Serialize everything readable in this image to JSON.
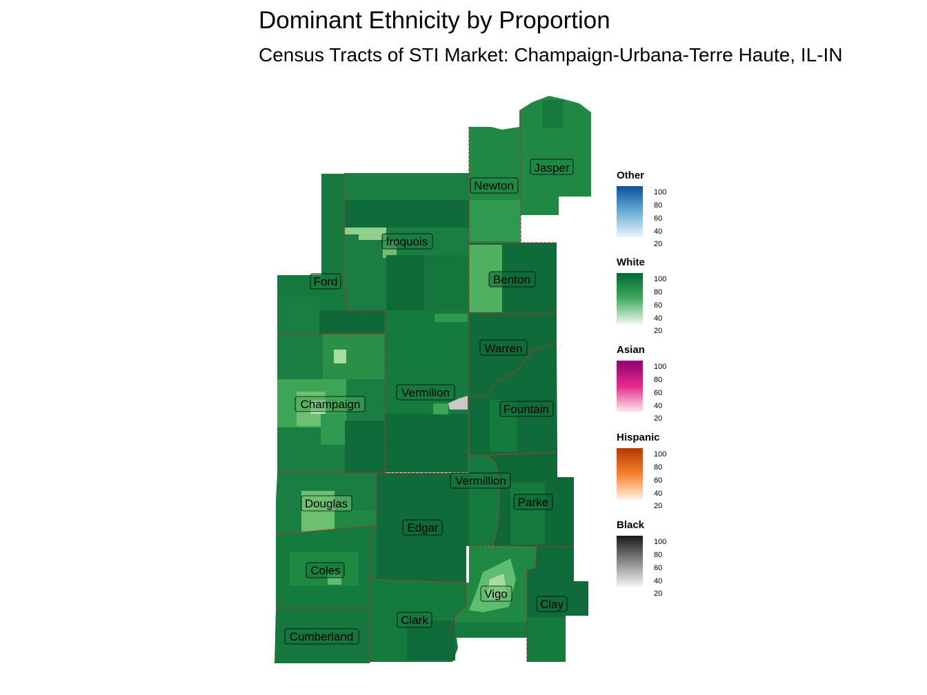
{
  "title": "Dominant Ethnicity by Proportion",
  "subtitle": "Census Tracts of STI Market: Champaign-Urbana-Terre Haute, IL-IN",
  "counties": [
    {
      "id": "jasper",
      "name": "Jasper"
    },
    {
      "id": "newton",
      "name": "Newton"
    },
    {
      "id": "iroquois",
      "name": "Iroquois"
    },
    {
      "id": "ford",
      "name": "Ford"
    },
    {
      "id": "benton",
      "name": "Benton"
    },
    {
      "id": "warren",
      "name": "Warren"
    },
    {
      "id": "vermilion",
      "name": "Vermilion"
    },
    {
      "id": "champaign",
      "name": "Champaign"
    },
    {
      "id": "fountain",
      "name": "Fountain"
    },
    {
      "id": "vermillion",
      "name": "Vermillion"
    },
    {
      "id": "parke",
      "name": "Parke"
    },
    {
      "id": "douglas",
      "name": "Douglas"
    },
    {
      "id": "edgar",
      "name": "Edgar"
    },
    {
      "id": "coles",
      "name": "Coles"
    },
    {
      "id": "vigo",
      "name": "Vigo"
    },
    {
      "id": "clay",
      "name": "Clay"
    },
    {
      "id": "clark",
      "name": "Clark"
    },
    {
      "id": "cumberland",
      "name": "Cumberland"
    }
  ],
  "legends": [
    {
      "title": "Other",
      "ticks": [
        "100",
        "80",
        "60",
        "40",
        "20"
      ],
      "color_high": "#08519c",
      "color_low": "#eef4fb"
    },
    {
      "title": "White",
      "ticks": [
        "100",
        "80",
        "60",
        "40",
        "20"
      ],
      "color_high": "#006837",
      "color_low": "#eef8ee"
    },
    {
      "title": "Asian",
      "ticks": [
        "100",
        "80",
        "60",
        "40",
        "20"
      ],
      "color_high": "#8e0170",
      "color_low": "#fde7ea"
    },
    {
      "title": "Hispanic",
      "ticks": [
        "100",
        "80",
        "60",
        "40",
        "20"
      ],
      "color_high": "#b33a00",
      "color_low": "#fff0e0"
    },
    {
      "title": "Black",
      "ticks": [
        "100",
        "80",
        "60",
        "40",
        "20"
      ],
      "color_high": "#1a1a1a",
      "color_low": "#f5f5f5"
    }
  ],
  "colors": {
    "border": "#b5302a",
    "white_dark": "#0d6b3a",
    "white_mid": "#1f8843",
    "white_light": "#5fbd6f",
    "white_pale": "#a8dca0",
    "black_tract": "#c9c9c9"
  }
}
